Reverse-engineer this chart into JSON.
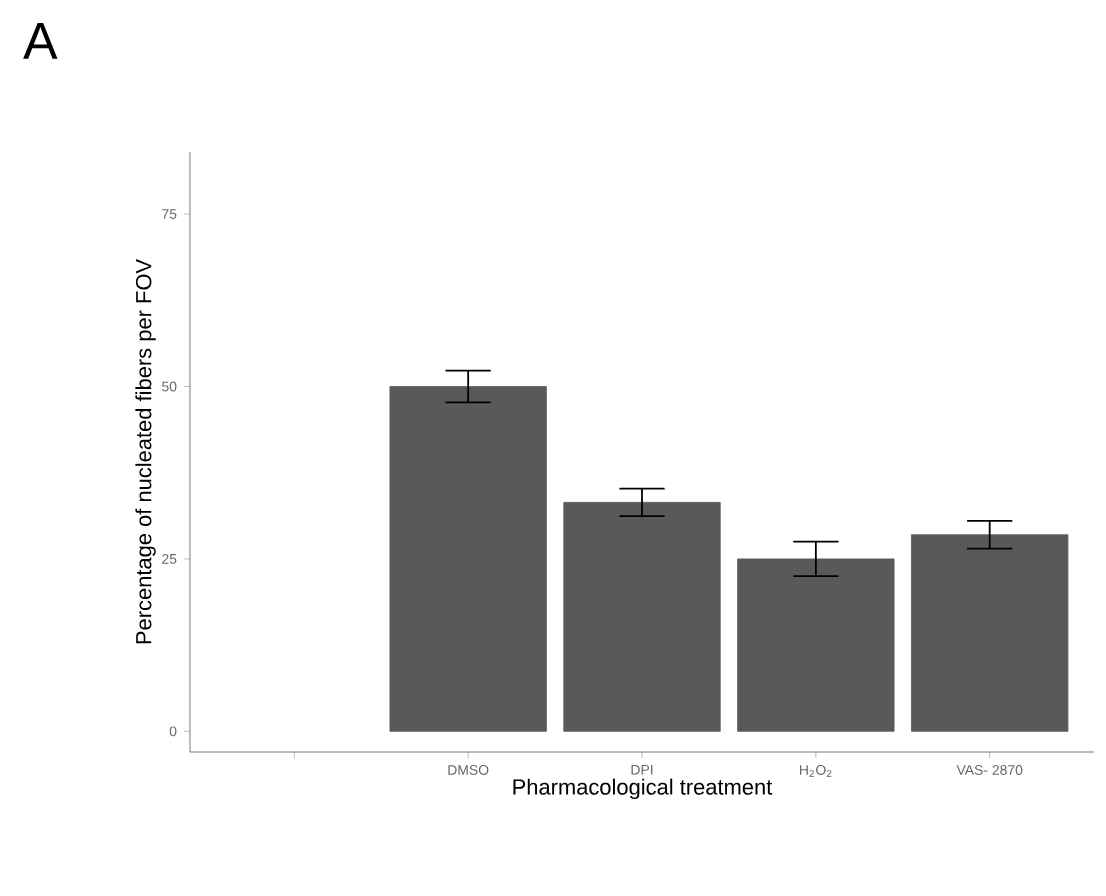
{
  "chart_data": {
    "type": "bar",
    "title": "A",
    "xlabel": "Pharmacological treatment",
    "ylabel": "Percentage of nucleated fibers per FOV",
    "categories": [
      null,
      "DMSO",
      "DPI",
      "H$_{2}$O$_{2}$",
      "VAS- 2870"
    ],
    "values": [
      null,
      50,
      33.2,
      25,
      28.5
    ],
    "errors": [
      null,
      2.3,
      2,
      2.5,
      2
    ],
    "color": "#595959",
    "ylim": [
      -3,
      84
    ],
    "yticks": [
      0,
      25,
      50,
      75
    ],
    "grid": false
  }
}
